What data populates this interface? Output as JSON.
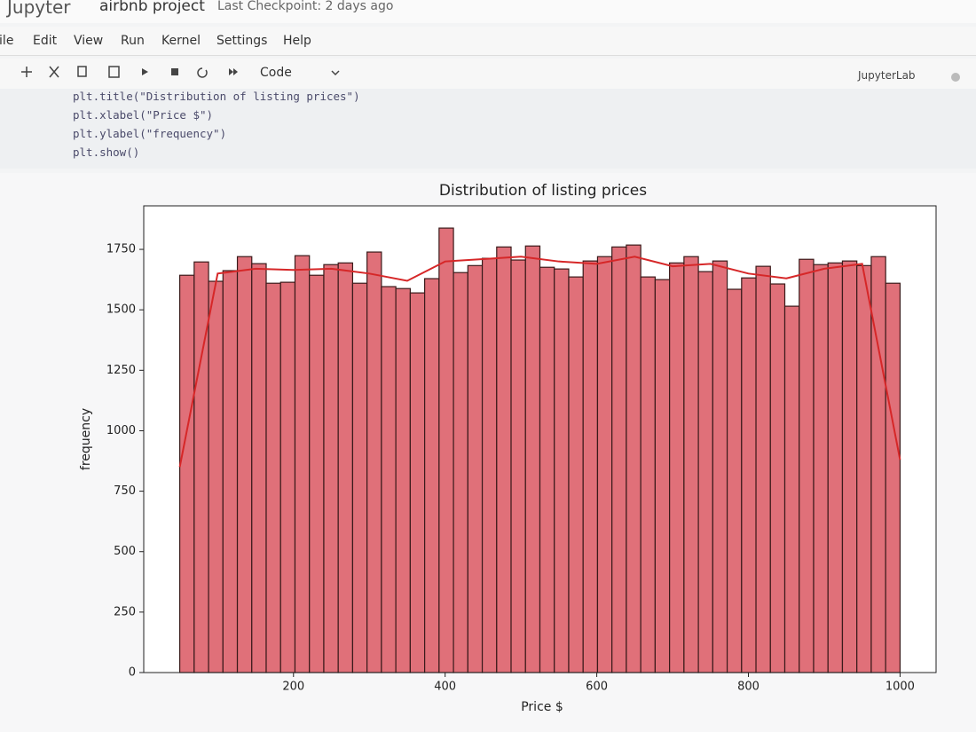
{
  "header": {
    "logo": "Jupyter",
    "notebook": "airbnb project",
    "checkpoint": "Last Checkpoint: 2 days ago"
  },
  "menu": [
    "File",
    "Edit",
    "View",
    "Run",
    "Kernel",
    "Settings",
    "Help"
  ],
  "toolbar": {
    "cell_type": "Code",
    "kernel_label": "JupyterLab"
  },
  "code": [
    "plt.title(\"Distribution of listing prices\")",
    "plt.xlabel(\"Price $\")",
    "plt.ylabel(\"frequency\")",
    "plt.show()"
  ],
  "chart_data": {
    "type": "histogram",
    "title": "Distribution of listing prices",
    "xlabel": "Price $",
    "ylabel": "frequency",
    "bins": [
      50,
      69,
      88,
      107,
      126,
      145,
      164,
      183,
      202,
      221,
      240,
      259,
      278,
      297,
      316,
      335,
      354,
      373,
      392,
      411,
      430,
      449,
      468,
      487,
      506,
      525,
      544,
      563,
      582,
      601,
      620,
      639,
      658,
      677,
      696,
      715,
      734,
      753,
      772,
      791,
      810,
      829,
      848,
      867,
      886,
      905,
      924,
      943,
      962,
      981,
      1000
    ],
    "values": [
      1643,
      1698,
      1618,
      1662,
      1720,
      1691,
      1610,
      1614,
      1724,
      1643,
      1687,
      1694,
      1610,
      1739,
      1596,
      1588,
      1570,
      1629,
      1838,
      1654,
      1683,
      1713,
      1760,
      1706,
      1764,
      1676,
      1669,
      1636,
      1702,
      1720,
      1760,
      1768,
      1636,
      1625,
      1694,
      1720,
      1658,
      1702,
      1585,
      1632,
      1680,
      1607,
      1515,
      1709,
      1687,
      1694,
      1702,
      1683,
      1720,
      1610
    ],
    "color": "#e07079",
    "edgecolor": "#3a1a1a",
    "kde": {
      "x": [
        50,
        100,
        150,
        200,
        250,
        300,
        350,
        400,
        450,
        500,
        550,
        600,
        650,
        700,
        750,
        800,
        850,
        900,
        950,
        1000
      ],
      "values": [
        850,
        1650,
        1670,
        1665,
        1670,
        1650,
        1620,
        1700,
        1710,
        1720,
        1700,
        1690,
        1720,
        1680,
        1690,
        1650,
        1630,
        1670,
        1690,
        880
      ],
      "color": "#d62728"
    },
    "xlim": [
      2.5,
      1047.5
    ],
    "ylim": [
      0,
      1930
    ],
    "xticks": [
      200,
      400,
      600,
      800,
      1000
    ],
    "yticks": [
      0,
      250,
      500,
      750,
      1000,
      1250,
      1500,
      1750
    ]
  }
}
